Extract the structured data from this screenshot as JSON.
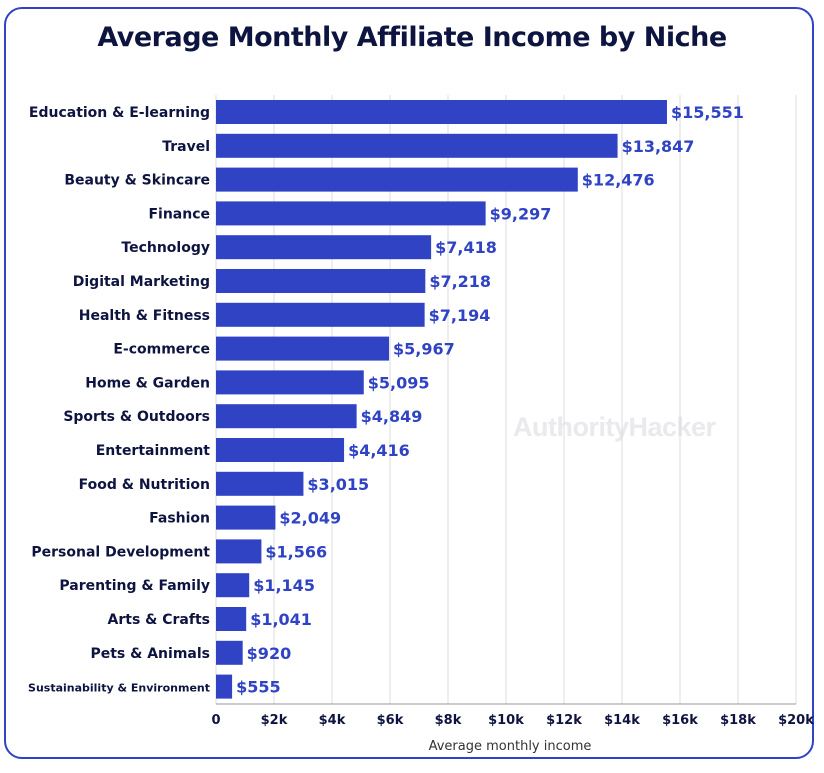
{
  "watermark": "AuthorityHacker",
  "colors": {
    "bar": "#2f43c4",
    "value_label": "#2f43c4",
    "text": "#0e1440",
    "border": "#2f43c4",
    "grid": "#dcdcdc"
  },
  "chart_data": {
    "type": "bar",
    "orientation": "horizontal",
    "title": "Average Monthly Affiliate Income by Niche",
    "xlabel": "Average monthly income",
    "ylabel": "",
    "xlim": [
      0,
      20000
    ],
    "grid": true,
    "categories": [
      "Education & E-learning",
      "Travel",
      "Beauty & Skincare",
      "Finance",
      "Technology",
      "Digital Marketing",
      "Health & Fitness",
      "E-commerce",
      "Home & Garden",
      "Sports & Outdoors",
      "Entertainment",
      "Food & Nutrition",
      "Fashion",
      "Personal Development",
      "Parenting & Family",
      "Arts & Crafts",
      "Pets & Animals",
      "Sustainability & Environment"
    ],
    "values": [
      15551,
      13847,
      12476,
      9297,
      7418,
      7218,
      7194,
      5967,
      5095,
      4849,
      4416,
      3015,
      2049,
      1566,
      1145,
      1041,
      920,
      555
    ],
    "value_labels": [
      "$15,551",
      "$13,847",
      "$12,476",
      "$9,297",
      "$7,418",
      "$7,218",
      "$7,194",
      "$5,967",
      "$5,095",
      "$4,849",
      "$4,416",
      "$3,015",
      "$2,049",
      "$1,566",
      "$1,145",
      "$1,041",
      "$920",
      "$555"
    ],
    "ticks": [
      0,
      2000,
      4000,
      6000,
      8000,
      10000,
      12000,
      14000,
      16000,
      18000,
      20000
    ],
    "tick_labels": [
      "0",
      "$2k",
      "$4k",
      "$6k",
      "$8k",
      "$10k",
      "$12k",
      "$14k",
      "$16k",
      "$18k",
      "$20k"
    ]
  }
}
